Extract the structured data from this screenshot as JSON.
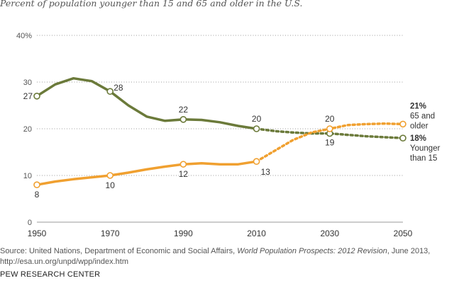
{
  "chart_data": {
    "type": "line",
    "title": "Percent of population younger than 15 and 65 and older in the U.S.",
    "x_ticks": [
      "1950",
      "1970",
      "1990",
      "2010",
      "2030",
      "2050"
    ],
    "y_ticks": [
      "0",
      "10",
      "20",
      "30",
      "40%"
    ],
    "xlim": [
      1950,
      2050
    ],
    "ylim": [
      0,
      40
    ],
    "grid": "horizontal dotted",
    "projection_starts": 2010,
    "series": [
      {
        "name": "Younger than 15",
        "color": "#6b7a3a",
        "x": [
          1950,
          1955,
          1960,
          1965,
          1970,
          1975,
          1980,
          1985,
          1990,
          1995,
          2000,
          2005,
          2010,
          2015,
          2020,
          2025,
          2030,
          2035,
          2040,
          2045,
          2050
        ],
        "values": [
          27,
          29.5,
          30.8,
          30.2,
          28,
          25,
          22.6,
          21.7,
          22,
          21.9,
          21.4,
          20.6,
          20,
          19.5,
          19.2,
          19,
          19,
          18.7,
          18.4,
          18.2,
          18
        ],
        "point_labels": [
          {
            "x": 1950,
            "label": "27"
          },
          {
            "x": 1970,
            "label": "28"
          },
          {
            "x": 1990,
            "label": "22"
          },
          {
            "x": 2010,
            "label": "20"
          },
          {
            "x": 2030,
            "label": "19"
          }
        ],
        "end_label": {
          "value": "18%",
          "text_lines": [
            "Younger",
            "than 15"
          ]
        }
      },
      {
        "name": "65 and older",
        "color": "#f0a030",
        "x": [
          1950,
          1955,
          1960,
          1965,
          1970,
          1975,
          1980,
          1985,
          1990,
          1995,
          2000,
          2005,
          2010,
          2015,
          2020,
          2025,
          2030,
          2035,
          2040,
          2045,
          2050
        ],
        "values": [
          8,
          8.7,
          9.2,
          9.6,
          10,
          10.6,
          11.3,
          11.9,
          12.4,
          12.6,
          12.4,
          12.4,
          13,
          15.3,
          17.6,
          19.2,
          20,
          20.8,
          21,
          21.1,
          21
        ],
        "point_labels": [
          {
            "x": 1950,
            "label": "8"
          },
          {
            "x": 1970,
            "label": "10"
          },
          {
            "x": 1990,
            "label": "12"
          },
          {
            "x": 2010,
            "label": "13"
          },
          {
            "x": 2030,
            "label": "20"
          }
        ],
        "end_label": {
          "value": "21%",
          "text_lines": [
            "65 and",
            "older"
          ]
        }
      }
    ]
  },
  "source": {
    "prefix": "Source: United Nations, Department of Economic and Social Affairs, ",
    "publication": "World Population Prospects: 2012 Revision",
    "suffix": ", June 2013,",
    "url": "http://esa.un.org/unpd/wpp/index.htm"
  },
  "organization": "PEW RESEARCH CENTER"
}
